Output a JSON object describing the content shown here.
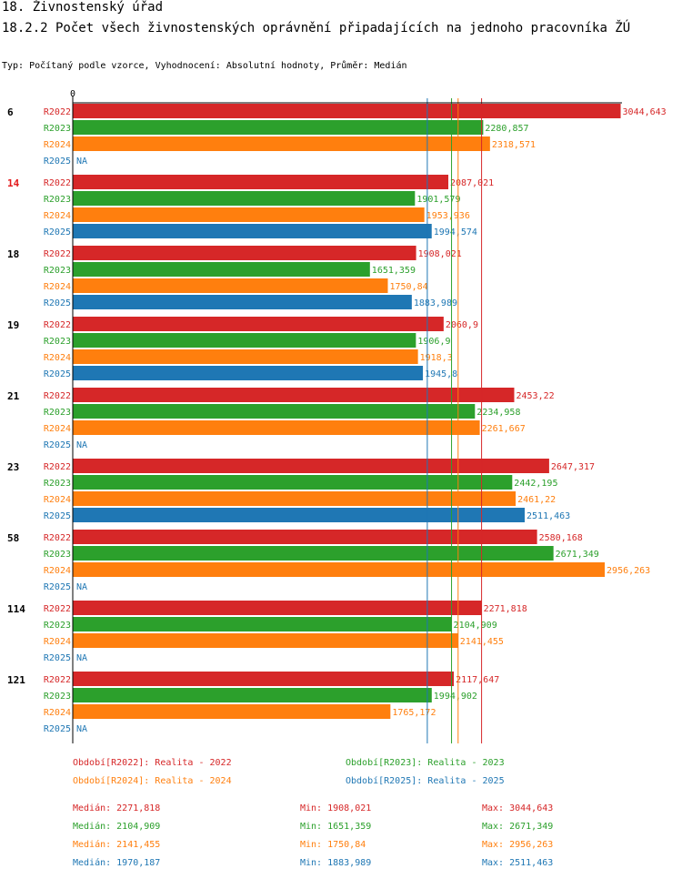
{
  "header": {
    "title": "18. Živnostenský úřad",
    "subtitle": "18.2.2 Počet všech živnostenských oprávnění připadajících na jednoho pracovníka ŽÚ",
    "type_line": "Typ: Počítaný podle vzorce, Vyhodnocení: Absolutní hodnoty, Průměr: Medián"
  },
  "colors": {
    "R2022": "#d62728",
    "R2023": "#2ca02c",
    "R2024": "#ff7f0e",
    "R2025": "#1f77b4"
  },
  "chart_data": {
    "type": "bar",
    "orientation": "horizontal",
    "x_tick_label": "0",
    "series_names": [
      "R2022",
      "R2023",
      "R2024",
      "R2025"
    ],
    "na_label": "NA",
    "highlighted_group": "14",
    "groups": [
      {
        "label": "6",
        "values": [
          3044.643,
          2280.857,
          2318.571,
          null
        ],
        "value_labels": [
          "3044,643",
          "2280,857",
          "2318,571",
          "NA"
        ]
      },
      {
        "label": "14",
        "values": [
          2087.021,
          1901.579,
          1953.936,
          1994.574
        ],
        "value_labels": [
          "2087,021",
          "1901,579",
          "1953,936",
          "1994,574"
        ]
      },
      {
        "label": "18",
        "values": [
          1908.021,
          1651.359,
          1750.84,
          1883.989
        ],
        "value_labels": [
          "1908,021",
          "1651,359",
          "1750,84",
          "1883,989"
        ]
      },
      {
        "label": "19",
        "values": [
          2060.9,
          1906.9,
          1918.3,
          1945.8
        ],
        "value_labels": [
          "2060,9",
          "1906,9",
          "1918,3",
          "1945,8"
        ]
      },
      {
        "label": "21",
        "values": [
          2453.22,
          2234.958,
          2261.667,
          null
        ],
        "value_labels": [
          "2453,22",
          "2234,958",
          "2261,667",
          "NA"
        ]
      },
      {
        "label": "23",
        "values": [
          2647.317,
          2442.195,
          2461.22,
          2511.463
        ],
        "value_labels": [
          "2647,317",
          "2442,195",
          "2461,22",
          "2511,463"
        ]
      },
      {
        "label": "58",
        "values": [
          2580.168,
          2671.349,
          2956.263,
          null
        ],
        "value_labels": [
          "2580,168",
          "2671,349",
          "2956,263",
          "NA"
        ]
      },
      {
        "label": "114",
        "values": [
          2271.818,
          2104.909,
          2141.455,
          null
        ],
        "value_labels": [
          "2271,818",
          "2104,909",
          "2141,455",
          "NA"
        ]
      },
      {
        "label": "121",
        "values": [
          2117.647,
          1994.902,
          1765.172,
          null
        ],
        "value_labels": [
          "2117,647",
          "1994,902",
          "1765,172",
          "NA"
        ]
      }
    ],
    "median_lines": [
      2271.818,
      2104.909,
      2141.455,
      1970.187
    ]
  },
  "legend": {
    "periods": [
      {
        "text": "Období[R2022]: Realita - 2022",
        "series": "R2022"
      },
      {
        "text": "Období[R2023]: Realita - 2023",
        "series": "R2023"
      },
      {
        "text": "Období[R2024]: Realita - 2024",
        "series": "R2024"
      },
      {
        "text": "Období[R2025]: Realita - 2025",
        "series": "R2025"
      }
    ],
    "stats": [
      {
        "series": "R2022",
        "median": "Medián: 2271,818",
        "min": "Min: 1908,021",
        "max": "Max: 3044,643"
      },
      {
        "series": "R2023",
        "median": "Medián: 2104,909",
        "min": "Min: 1651,359",
        "max": "Max: 2671,349"
      },
      {
        "series": "R2024",
        "median": "Medián: 2141,455",
        "min": "Min: 1750,84",
        "max": "Max: 2956,263"
      },
      {
        "series": "R2025",
        "median": "Medián: 1970,187",
        "min": "Min: 1883,989",
        "max": "Max: 2511,463"
      }
    ]
  }
}
